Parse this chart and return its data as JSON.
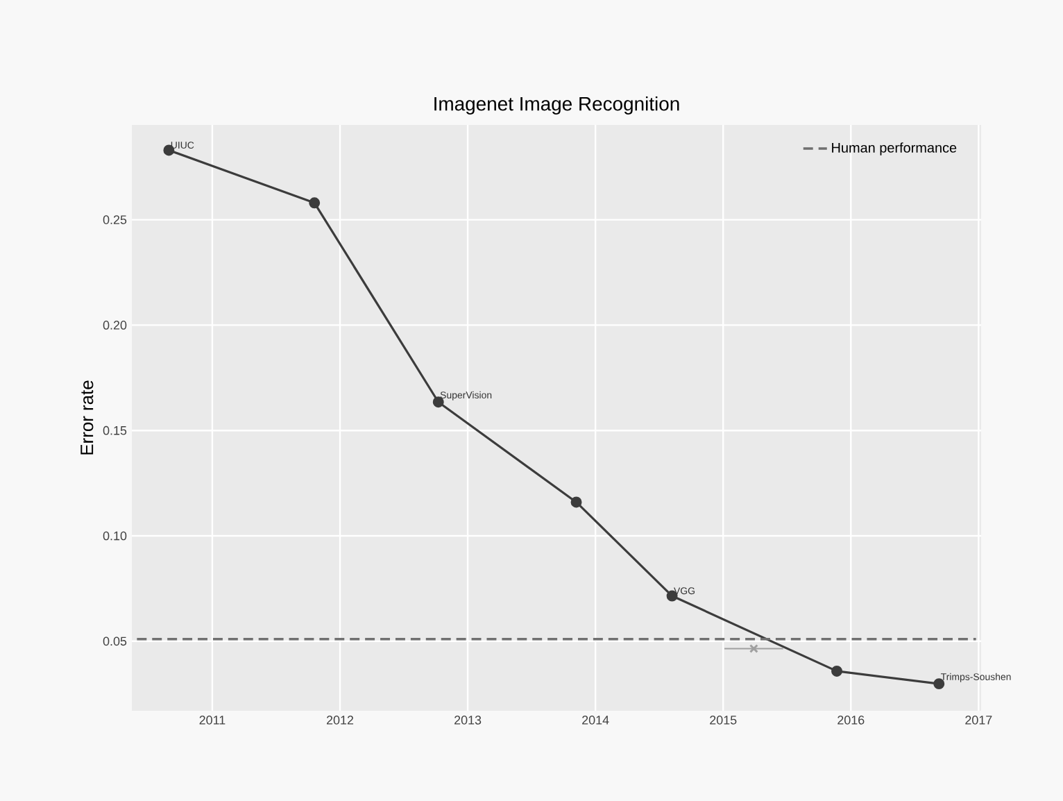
{
  "chart_data": {
    "type": "line",
    "title": "Imagenet Image Recognition",
    "ylabel": "Error rate",
    "xlim": [
      2010.37,
      2017.02
    ],
    "ylim": [
      0.017,
      0.295
    ],
    "xticks": [
      2011,
      2012,
      2013,
      2014,
      2015,
      2016,
      2017
    ],
    "yticks": [
      0.05,
      {
        "value": 0.1,
        "label": "0.10"
      },
      0.15,
      {
        "value": 0.2,
        "label": "0.20"
      },
      0.25
    ],
    "grid": true,
    "legend": "top right",
    "marker": "circle",
    "series": [
      {
        "color": "#3c3c3c",
        "x": [
          2010.66,
          2011.8,
          2012.77,
          2013.85,
          2014.6,
          2015.89,
          2016.69
        ],
        "values": [
          0.283,
          0.258,
          0.1635,
          0.116,
          0.0715,
          0.0358,
          0.0298
        ]
      },
      {
        "type": "scatter",
        "color": "#a0a0a0",
        "marker": "cross",
        "x": [
          2015.24
        ],
        "values": [
          0.0465
        ],
        "xerrors": [
          0.23
        ]
      }
    ],
    "ref_lines": [
      {
        "axis": "y",
        "value": 0.051,
        "label": "Human performance",
        "color": "#707070",
        "line_style": "dashed"
      }
    ],
    "annotations": [
      {
        "text": "UIUC",
        "x": 2010.66,
        "y": 0.283
      },
      {
        "text": "SuperVision",
        "x": 2012.77,
        "y": 0.1635
      },
      {
        "text": "VGG",
        "x": 2014.6,
        "y": 0.0715
      },
      {
        "text": "Trimps-Soushen",
        "x": 2016.69,
        "y": 0.0298
      }
    ]
  }
}
